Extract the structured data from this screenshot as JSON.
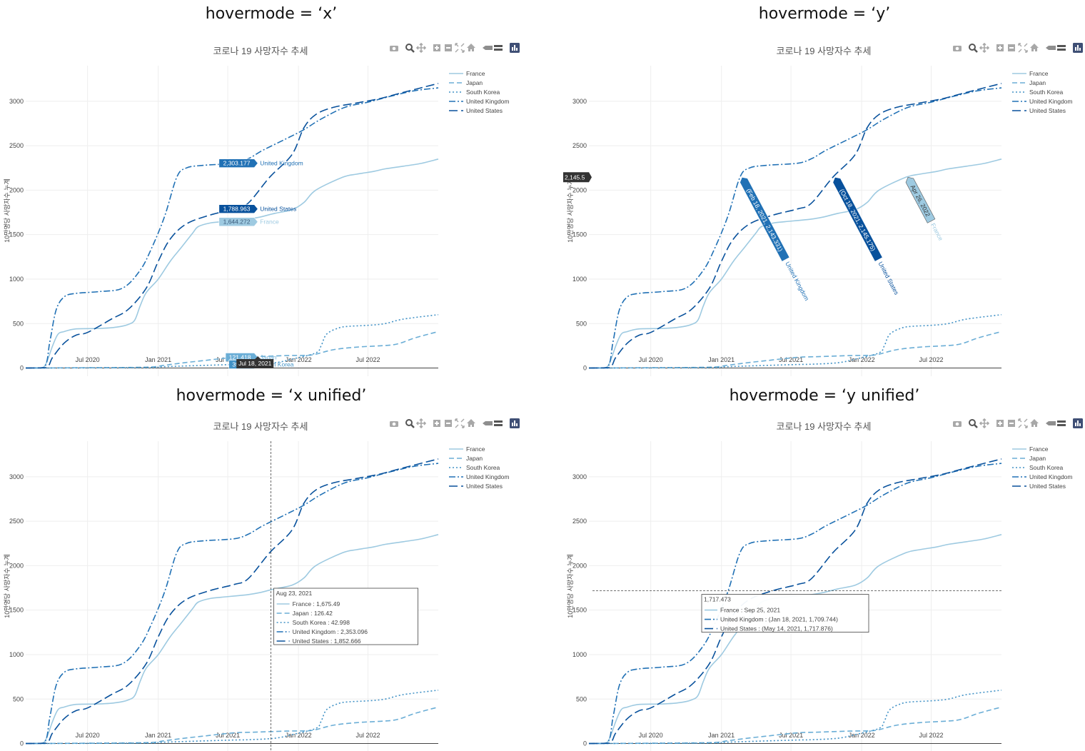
{
  "headings": [
    "hovermode = ‘x’",
    "hovermode = ‘y’",
    "hovermode = ‘x unified’",
    "hovermode = ‘y unified’"
  ],
  "colors": {
    "France": "#9ecae1",
    "Japan": "#6baed6",
    "South Korea": "#4292c6",
    "United Kingdom": "#2171b5",
    "United States": "#08519c",
    "spike": "#444444"
  },
  "modebar_icons": [
    "camera-icon",
    "zoom-icon",
    "pan-icon",
    "zoom-in-icon",
    "zoom-out-icon",
    "autoscale-icon",
    "home-icon",
    "spike-lines-icon",
    "compare-icon",
    "plotly-logo-icon"
  ],
  "chart_data": [
    {
      "type": "line",
      "title": "코로나 19 사망자수 추세",
      "ylabel": "10만명당 사망자수 누계",
      "xlabel": "",
      "x_ticks": [
        "Jul 2020",
        "Jan 2021",
        "Jul 2021",
        "Jan 2022",
        "Jul 2022"
      ],
      "y_ticks": [
        0,
        500,
        1000,
        1500,
        2000,
        2500,
        3000
      ],
      "ylim": [
        -100,
        3400
      ],
      "xlim": [
        "2020-01-22",
        "2022-12-31"
      ],
      "grid": true,
      "legend_position": "top-right",
      "series": [
        {
          "name": "France",
          "dash": "solid",
          "x": [
            "2020-01-22",
            "2020-03-01",
            "2020-03-15",
            "2020-04-01",
            "2020-04-15",
            "2020-05-01",
            "2020-06-01",
            "2020-08-01",
            "2020-09-15",
            "2020-10-15",
            "2020-11-01",
            "2020-11-15",
            "2020-12-01",
            "2021-01-01",
            "2021-02-01",
            "2021-03-01",
            "2021-04-01",
            "2021-04-15",
            "2021-05-15",
            "2021-06-15",
            "2021-08-23",
            "2021-09-25",
            "2021-11-01",
            "2021-12-15",
            "2022-01-15",
            "2022-02-15",
            "2022-04-26",
            "2022-06-01",
            "2022-07-15",
            "2022-08-15",
            "2022-10-01",
            "2022-11-15",
            "2022-12-31"
          ],
          "y": [
            0,
            0,
            50,
            250,
            380,
            410,
            440,
            445,
            460,
            490,
            540,
            700,
            850,
            1000,
            1200,
            1350,
            1520,
            1590,
            1630,
            1645,
            1675,
            1700,
            1740,
            1780,
            1860,
            2000,
            2145,
            2180,
            2210,
            2240,
            2270,
            2300,
            2350
          ]
        },
        {
          "name": "Japan",
          "dash": "dash",
          "x": [
            "2020-01-22",
            "2020-06-01",
            "2020-12-01",
            "2021-01-15",
            "2021-03-01",
            "2021-05-01",
            "2021-07-18",
            "2021-08-23",
            "2021-09-25",
            "2021-12-01",
            "2022-02-01",
            "2022-04-01",
            "2022-06-01",
            "2022-08-01",
            "2022-09-15",
            "2022-11-01",
            "2022-12-31"
          ],
          "y": [
            0,
            3,
            10,
            30,
            55,
            85,
            121,
            126,
            130,
            140,
            145,
            205,
            235,
            250,
            270,
            340,
            410
          ]
        },
        {
          "name": "South Korea",
          "dash": "dot",
          "x": [
            "2020-01-22",
            "2020-12-01",
            "2021-01-15",
            "2021-07-18",
            "2021-08-23",
            "2021-11-01",
            "2021-12-15",
            "2022-02-15",
            "2022-03-01",
            "2022-03-15",
            "2022-04-15",
            "2022-05-15",
            "2022-07-01",
            "2022-08-15",
            "2022-10-01",
            "2022-12-31"
          ],
          "y": [
            0,
            5,
            15,
            40,
            43,
            60,
            100,
            170,
            250,
            380,
            450,
            470,
            480,
            500,
            550,
            600
          ]
        },
        {
          "name": "United Kingdom",
          "dash": "dashdot",
          "x": [
            "2020-01-22",
            "2020-03-10",
            "2020-03-25",
            "2020-04-10",
            "2020-05-01",
            "2020-06-01",
            "2020-08-01",
            "2020-10-01",
            "2020-11-15",
            "2020-12-15",
            "2021-01-18",
            "2021-02-18",
            "2021-03-15",
            "2021-05-01",
            "2021-07-18",
            "2021-08-23",
            "2021-10-01",
            "2021-12-01",
            "2022-01-15",
            "2022-03-01",
            "2022-05-01",
            "2022-07-01",
            "2022-09-01",
            "2022-11-01",
            "2022-12-31"
          ],
          "y": [
            0,
            5,
            300,
            650,
            800,
            840,
            860,
            900,
            1100,
            1350,
            1710,
            2143,
            2250,
            2280,
            2303,
            2353,
            2450,
            2580,
            2680,
            2800,
            2930,
            2990,
            3060,
            3120,
            3150
          ]
        },
        {
          "name": "United States",
          "dash": "longdash",
          "x": [
            "2020-01-22",
            "2020-03-15",
            "2020-04-01",
            "2020-05-01",
            "2020-06-01",
            "2020-07-01",
            "2020-09-01",
            "2020-10-15",
            "2020-12-01",
            "2021-01-01",
            "2021-02-01",
            "2021-03-15",
            "2021-05-14",
            "2021-07-18",
            "2021-08-23",
            "2021-10-18",
            "2021-12-15",
            "2022-01-15",
            "2022-02-15",
            "2022-04-01",
            "2022-06-01",
            "2022-08-01",
            "2022-10-01",
            "2022-12-31"
          ],
          "y": [
            0,
            5,
            120,
            280,
            370,
            400,
            550,
            660,
            900,
            1200,
            1450,
            1620,
            1718,
            1789,
            1853,
            2145,
            2400,
            2700,
            2850,
            2930,
            2980,
            3030,
            3100,
            3200
          ]
        }
      ],
      "hover": {
        "mode": "x",
        "x_label": "Jul 18, 2021",
        "labels": [
          {
            "series": "United Kingdom",
            "value": "2,303.177",
            "y": 2303
          },
          {
            "series": "United States",
            "value": "1,788.963",
            "y": 1789
          },
          {
            "series": "France",
            "value": "1,644.272",
            "y": 1644
          },
          {
            "series": "Japan",
            "value": "121.418",
            "y": 121
          },
          {
            "series": "South Korea",
            "value": "39.718",
            "y": 40
          }
        ]
      }
    },
    {
      "type": "line",
      "title": "코로나 19 사망자수 추세",
      "ylabel": "10만명당 사망자수 누계",
      "xlabel": "",
      "x_ticks": [
        "Jul 2020",
        "Jan 2021",
        "Jul 2021",
        "Jan 2022",
        "Jul 2022"
      ],
      "y_ticks": [
        0,
        500,
        1000,
        1500,
        2000,
        2500,
        3000
      ],
      "ylim": [
        -100,
        3400
      ],
      "grid": true,
      "legend_position": "top-right",
      "hover": {
        "mode": "y",
        "y_label": "2,145.5",
        "labels": [
          {
            "series": "United Kingdom",
            "text": "(Feb 18, 2021, 2,143.331)",
            "x": "2021-02-18"
          },
          {
            "series": "United States",
            "text": "(Oct 18, 2021, 2,145.175)",
            "x": "2021-10-18"
          },
          {
            "series": "France",
            "text": "Apr 26, 2022",
            "x": "2022-04-26"
          }
        ]
      }
    },
    {
      "type": "line",
      "title": "코로나 19 사망자수 추세",
      "ylabel": "10만명당 사망자수 누계",
      "xlabel": "",
      "x_ticks": [
        "Jul 2020",
        "Jan 2021",
        "Jul 2021",
        "Jan 2022",
        "Jul 2022"
      ],
      "y_ticks": [
        0,
        500,
        1000,
        1500,
        2000,
        2500,
        3000
      ],
      "ylim": [
        -100,
        3400
      ],
      "grid": true,
      "legend_position": "top-right",
      "hover": {
        "mode": "x unified",
        "header": "Aug 23, 2021",
        "x": "2021-08-23",
        "rows": [
          {
            "series": "France",
            "text": "France : 1,675.49"
          },
          {
            "series": "Japan",
            "text": "Japan : 126.42"
          },
          {
            "series": "South Korea",
            "text": "South Korea : 42.998"
          },
          {
            "series": "United Kingdom",
            "text": "United Kingdom : 2,353.096"
          },
          {
            "series": "United States",
            "text": "United States : 1,852.666"
          }
        ]
      }
    },
    {
      "type": "line",
      "title": "코로나 19 사망자수 추세",
      "ylabel": "10만명당 사망자수 누계",
      "xlabel": "",
      "x_ticks": [
        "Jul 2020",
        "Jan 2021",
        "Jul 2021",
        "Jan 2022",
        "Jul 2022"
      ],
      "y_ticks": [
        0,
        500,
        1000,
        1500,
        2000,
        2500,
        3000
      ],
      "ylim": [
        -100,
        3400
      ],
      "grid": true,
      "legend_position": "top-right",
      "hover": {
        "mode": "y unified",
        "header": "1,717.473",
        "y": 1717.473,
        "rows": [
          {
            "series": "France",
            "text": "France : Sep 25, 2021"
          },
          {
            "series": "United Kingdom",
            "text": "United Kingdom : (Jan 18, 2021, 1,709.744)"
          },
          {
            "series": "United States",
            "text": "United States : (May 14, 2021, 1,717.876)"
          }
        ]
      }
    }
  ]
}
